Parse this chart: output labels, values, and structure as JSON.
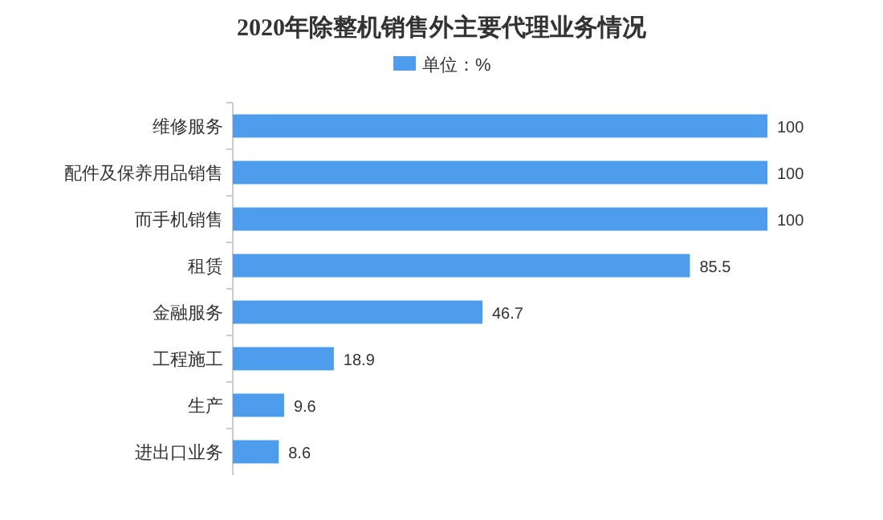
{
  "chart_data": {
    "type": "bar",
    "orientation": "horizontal",
    "title": "2020年除整机销售外主要代理业务情况",
    "categories": [
      "维修服务",
      "配件及保养用品销售",
      "而手机销售",
      "租赁",
      "金融服务",
      "工程施工",
      "生产",
      "进出口业务"
    ],
    "series": [
      {
        "name": "单位：%",
        "color": "#4e9ded",
        "values": [
          100,
          100,
          100,
          85.5,
          46.7,
          18.9,
          9.6,
          8.6
        ]
      }
    ],
    "data_labels": true,
    "legend": "top"
  }
}
